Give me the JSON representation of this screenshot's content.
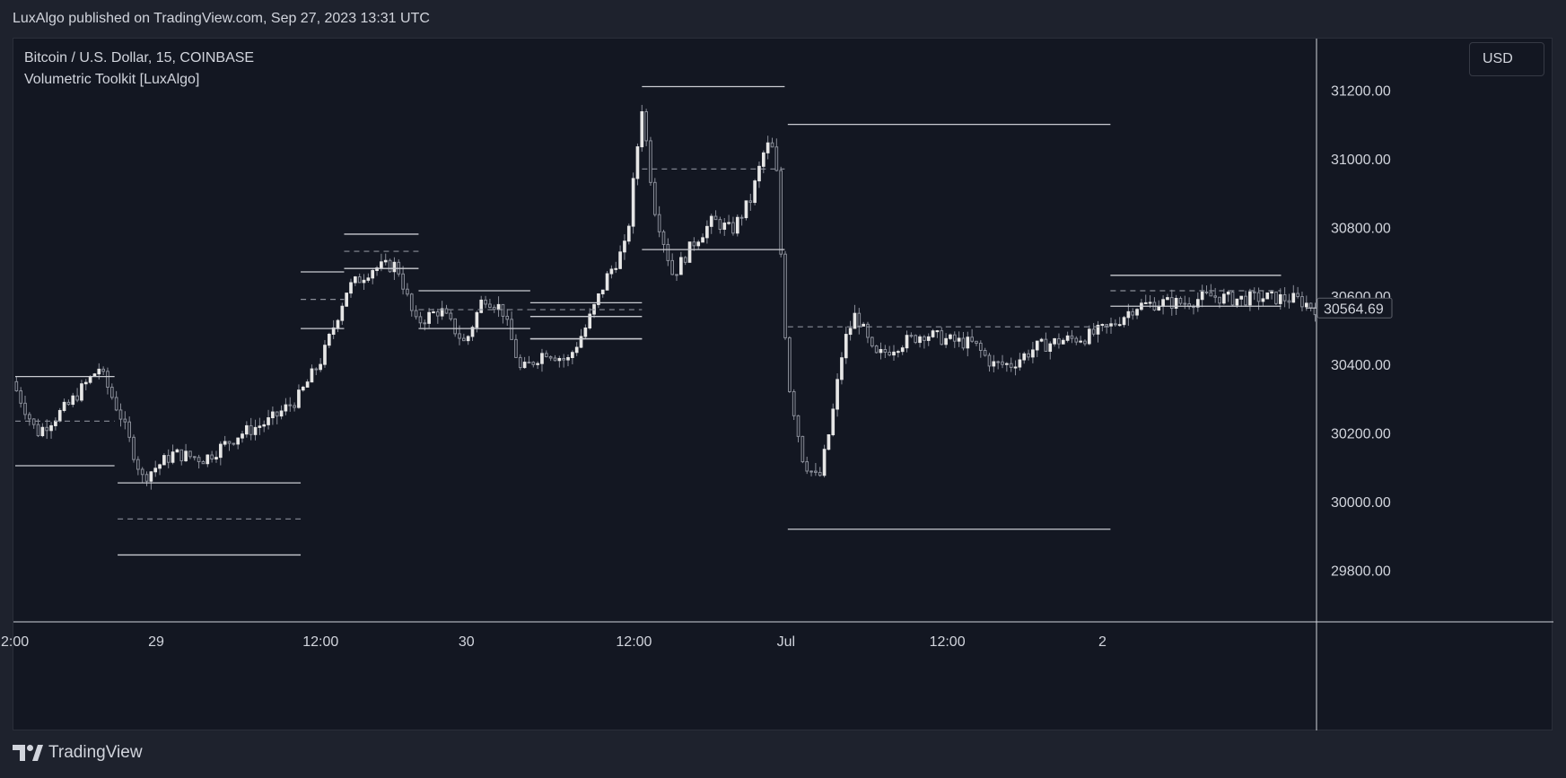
{
  "header": {
    "published_text": "LuxAlgo published on TradingView.com, Sep 27, 2023 13:31 UTC"
  },
  "legend": {
    "symbol_line": "Bitcoin / U.S. Dollar, 15, COINBASE",
    "indicator_line": "Volumetric Toolkit [LuxAlgo]"
  },
  "price_axis": {
    "currency": "USD",
    "ticks": [
      "31200.00",
      "31000.00",
      "30800.00",
      "30600.00",
      "30400.00",
      "30200.00",
      "30000.00",
      "29800.00"
    ],
    "current_price": "30564.69"
  },
  "time_axis": {
    "ticks": [
      "2:00",
      "29",
      "12:00",
      "30",
      "12:00",
      "Jul",
      "12:00",
      "2"
    ]
  },
  "footer": {
    "brand": "TradingView"
  },
  "colors": {
    "background": "#131722",
    "frame": "#1e222d",
    "candle": "#e6e6e6",
    "wick": "#8a8e99",
    "level_line": "#c9cbd1",
    "dashed_line": "#8a8e99"
  },
  "chart_data": {
    "type": "candlestick",
    "title": "Bitcoin / U.S. Dollar, 15, COINBASE",
    "ylim": [
      29650,
      31350
    ],
    "yticks": [
      29800,
      30000,
      30200,
      30400,
      30600,
      30800,
      31000,
      31200
    ],
    "current_price": 30564.69,
    "close_path": [
      [
        0,
        30350
      ],
      [
        0.8,
        30200
      ],
      [
        1.8,
        30280
      ],
      [
        2.8,
        30390
      ],
      [
        3.5,
        30250
      ],
      [
        4.2,
        30070
      ],
      [
        5.2,
        30140
      ],
      [
        6.2,
        30125
      ],
      [
        7.3,
        30195
      ],
      [
        8.3,
        30235
      ],
      [
        9.2,
        30300
      ],
      [
        10.0,
        30420
      ],
      [
        10.8,
        30620
      ],
      [
        11.6,
        30680
      ],
      [
        12.4,
        30690
      ],
      [
        13.0,
        30520
      ],
      [
        13.8,
        30560
      ],
      [
        14.6,
        30460
      ],
      [
        15.2,
        30600
      ],
      [
        15.8,
        30560
      ],
      [
        16.4,
        30380
      ],
      [
        17.2,
        30440
      ],
      [
        17.9,
        30410
      ],
      [
        18.5,
        30510
      ],
      [
        19.2,
        30660
      ],
      [
        19.8,
        30750
      ],
      [
        20.3,
        31150
      ],
      [
        20.7,
        30860
      ],
      [
        21.3,
        30660
      ],
      [
        22.0,
        30760
      ],
      [
        22.6,
        30820
      ],
      [
        23.2,
        30790
      ],
      [
        23.8,
        30880
      ],
      [
        24.3,
        31040
      ],
      [
        24.6,
        31020
      ],
      [
        25.0,
        30360
      ],
      [
        25.5,
        30120
      ],
      [
        26.0,
        30060
      ],
      [
        26.4,
        30230
      ],
      [
        26.8,
        30460
      ],
      [
        27.2,
        30550
      ],
      [
        27.8,
        30420
      ],
      [
        28.6,
        30460
      ],
      [
        29.4,
        30490
      ],
      [
        30.2,
        30470
      ],
      [
        31.0,
        30460
      ],
      [
        31.6,
        30400
      ],
      [
        32.2,
        30400
      ],
      [
        33.0,
        30450
      ],
      [
        33.8,
        30470
      ],
      [
        34.6,
        30480
      ],
      [
        35.4,
        30510
      ],
      [
        36.2,
        30570
      ],
      [
        37.0,
        30580
      ],
      [
        37.8,
        30580
      ],
      [
        38.6,
        30600
      ],
      [
        39.4,
        30590
      ],
      [
        40.4,
        30595
      ],
      [
        41.4,
        30590
      ],
      [
        42.0,
        30565
      ]
    ],
    "levels": [
      {
        "x0": 0,
        "x1": 3.2,
        "top": 30365,
        "mid": 30235,
        "bottom": 30105
      },
      {
        "x0": 3.3,
        "x1": 9.2,
        "top": 30055,
        "mid": 29950,
        "bottom": 29845
      },
      {
        "x0": 9.2,
        "x1": 10.6,
        "top": 30670,
        "mid": 30590,
        "bottom": 30505
      },
      {
        "x0": 10.6,
        "x1": 13.0,
        "top": 30780,
        "mid": 30730,
        "bottom": 30680
      },
      {
        "x0": 13.0,
        "x1": 16.6,
        "top": 30615,
        "mid": 30560,
        "bottom": 30505
      },
      {
        "x0": 16.6,
        "x1": 20.2,
        "top": 30580,
        "mid": 30560,
        "bottom": 30540
      },
      {
        "x0": 16.6,
        "x1": 20.2,
        "top": 30475,
        "mid": 30475,
        "bottom": 30475
      },
      {
        "x0": 20.2,
        "x1": 24.8,
        "top": 31210,
        "mid": 30970,
        "bottom": 30735
      },
      {
        "x0": 24.9,
        "x1": 35.3,
        "top": 31100,
        "mid": 30510,
        "bottom": 29920
      },
      {
        "x0": 35.3,
        "x1": 40.8,
        "top": 30660,
        "mid": 30615,
        "bottom": 30570
      }
    ]
  }
}
